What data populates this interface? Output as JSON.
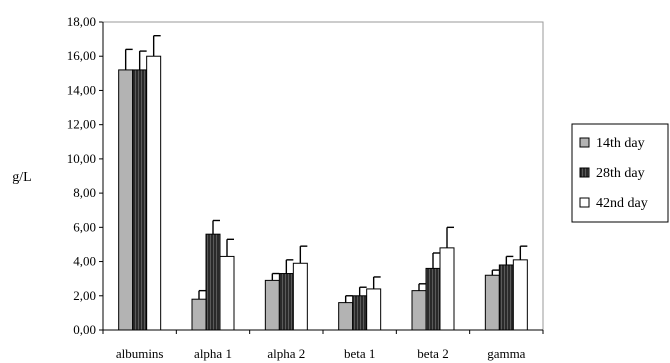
{
  "chart_data": {
    "type": "bar",
    "title": "",
    "xlabel": "",
    "ylabel": "g/L",
    "ylim": [
      0,
      18
    ],
    "yticks": [
      "0,00",
      "2,00",
      "4,00",
      "6,00",
      "8,00",
      "10,00",
      "12,00",
      "14,00",
      "16,00",
      "18,00"
    ],
    "categories": [
      "albumins",
      "alpha 1",
      "alpha 2",
      "beta 1",
      "beta 2",
      "gamma"
    ],
    "grid": false,
    "legend_position": "right",
    "series": [
      {
        "name": "14th day",
        "color": "#b3b3b3",
        "hatch": false,
        "values": [
          15.2,
          1.8,
          2.9,
          1.6,
          2.3,
          3.2
        ],
        "errors": [
          1.2,
          0.5,
          0.4,
          0.4,
          0.4,
          0.3
        ]
      },
      {
        "name": "28th day",
        "color": "#333333",
        "hatch": true,
        "values": [
          15.2,
          5.6,
          3.3,
          2.0,
          3.6,
          3.8
        ],
        "errors": [
          1.1,
          0.8,
          0.8,
          0.5,
          0.9,
          0.5
        ]
      },
      {
        "name": "42nd day",
        "color": "#ffffff",
        "hatch": false,
        "values": [
          16.0,
          4.3,
          3.9,
          2.4,
          4.8,
          4.1
        ],
        "errors": [
          1.2,
          1.0,
          1.0,
          0.7,
          1.2,
          0.8
        ]
      }
    ]
  }
}
